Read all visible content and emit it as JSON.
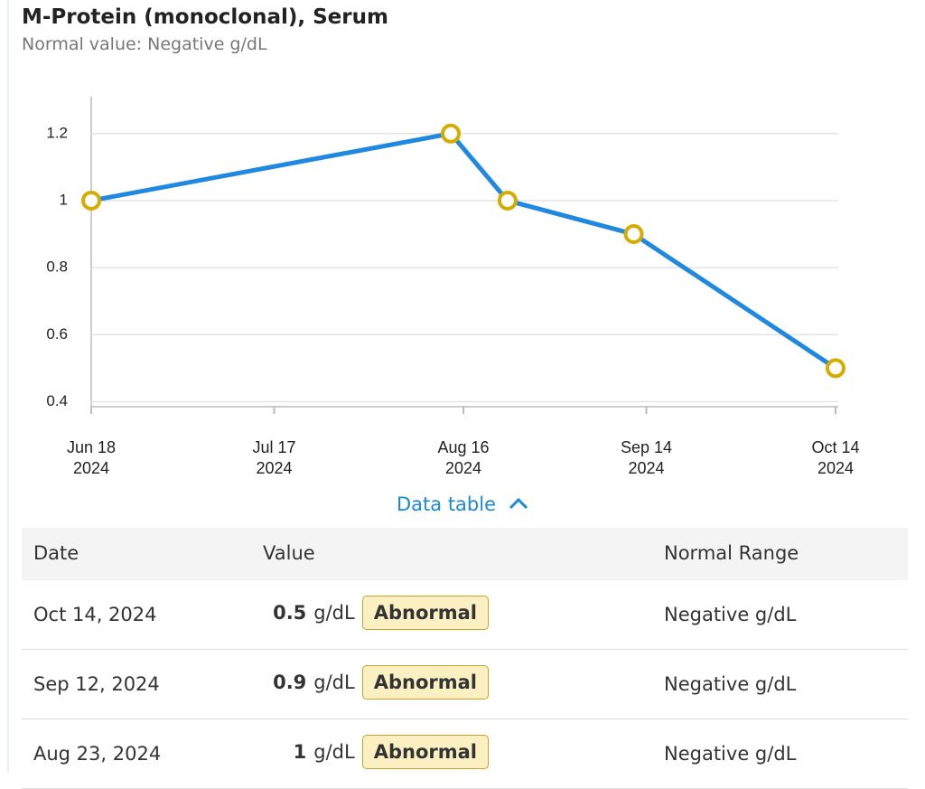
{
  "header": {
    "title": "M-Protein (monoclonal), Serum",
    "subtitle": "Normal value: Negative g/dL"
  },
  "chart_data": {
    "type": "line",
    "x": [
      "2024-06-18",
      "2024-08-14",
      "2024-08-23",
      "2024-09-12",
      "2024-10-14"
    ],
    "series": [
      {
        "color": "#1f88e0",
        "marker_color": "#d4ad00",
        "values": [
          1,
          1.2,
          1,
          0.9,
          0.5
        ]
      }
    ],
    "xlim": [
      "2024-06-18",
      "2024-10-14"
    ],
    "xticks": [
      {
        "value": "2024-06-18",
        "label": "Jun 18\n2024"
      },
      {
        "value": "2024-07-17",
        "label": "Jul 17\n2024"
      },
      {
        "value": "2024-08-16",
        "label": "Aug 16\n2024"
      },
      {
        "value": "2024-09-14",
        "label": "Sep 14\n2024"
      },
      {
        "value": "2024-10-14",
        "label": "Oct 14\n2024"
      }
    ],
    "ylim": [
      0.385,
      1.31
    ],
    "yticks": [
      0.4,
      0.6,
      0.8,
      1,
      1.2
    ],
    "grid": true
  },
  "toggle": {
    "label": "Data table"
  },
  "table": {
    "columns": [
      "Date",
      "Value",
      "Normal Range"
    ],
    "rows": [
      {
        "date": "Oct 14, 2024",
        "value": "0.5",
        "unit": "g/dL",
        "flag": "Abnormal",
        "range": "Negative g/dL"
      },
      {
        "date": "Sep 12, 2024",
        "value": "0.9",
        "unit": "g/dL",
        "flag": "Abnormal",
        "range": "Negative g/dL"
      },
      {
        "date": "Aug 23, 2024",
        "value": "1",
        "unit": "g/dL",
        "flag": "Abnormal",
        "range": "Negative g/dL"
      }
    ]
  }
}
